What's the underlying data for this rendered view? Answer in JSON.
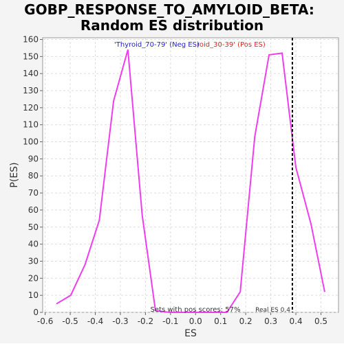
{
  "chart_data": {
    "type": "line",
    "title": "GOBP_RESPONSE_TO_AMYLOID_BETA:",
    "subtitle": "Random ES distribution",
    "x_label": "ES",
    "y_label": "P(ES)",
    "x": [
      -0.555,
      -0.498,
      -0.441,
      -0.384,
      -0.327,
      -0.27,
      -0.213,
      -0.16,
      -0.103,
      -0.046,
      0.011,
      0.068,
      0.125,
      0.178,
      0.236,
      0.293,
      0.345,
      0.4,
      0.46,
      0.515
    ],
    "series": [
      {
        "name": "'Thyroid_70-79' (Neg ES)",
        "color": "#f03cf0",
        "values": [
          5,
          10,
          28,
          54,
          124,
          154,
          57,
          1,
          0,
          0,
          0,
          0,
          0,
          12,
          103,
          151,
          152,
          85,
          52,
          12
        ]
      }
    ],
    "legend": [
      "'Thyroid_70-79' (Neg ES)",
      "roid_30-39' (Pos ES)"
    ],
    "legend_colors": [
      "#2222cc",
      "#dd2222"
    ],
    "xlim": [
      -0.61,
      0.57
    ],
    "ylim": [
      0,
      161
    ],
    "xticks": [
      -0.6,
      -0.5,
      -0.4,
      -0.3,
      -0.2,
      -0.1,
      {
        "value": 0,
        "label": "0.0"
      },
      0.1,
      0.2,
      0.3,
      0.4,
      0.5
    ],
    "yticks": [
      0,
      10,
      20,
      30,
      40,
      50,
      60,
      70,
      80,
      90,
      100,
      110,
      120,
      130,
      140,
      150,
      160
    ],
    "grid": true,
    "real_es": {
      "value": 0.386,
      "label": "Real ES 0.4"
    },
    "annotation": "Sets with pos scores: 57%"
  }
}
